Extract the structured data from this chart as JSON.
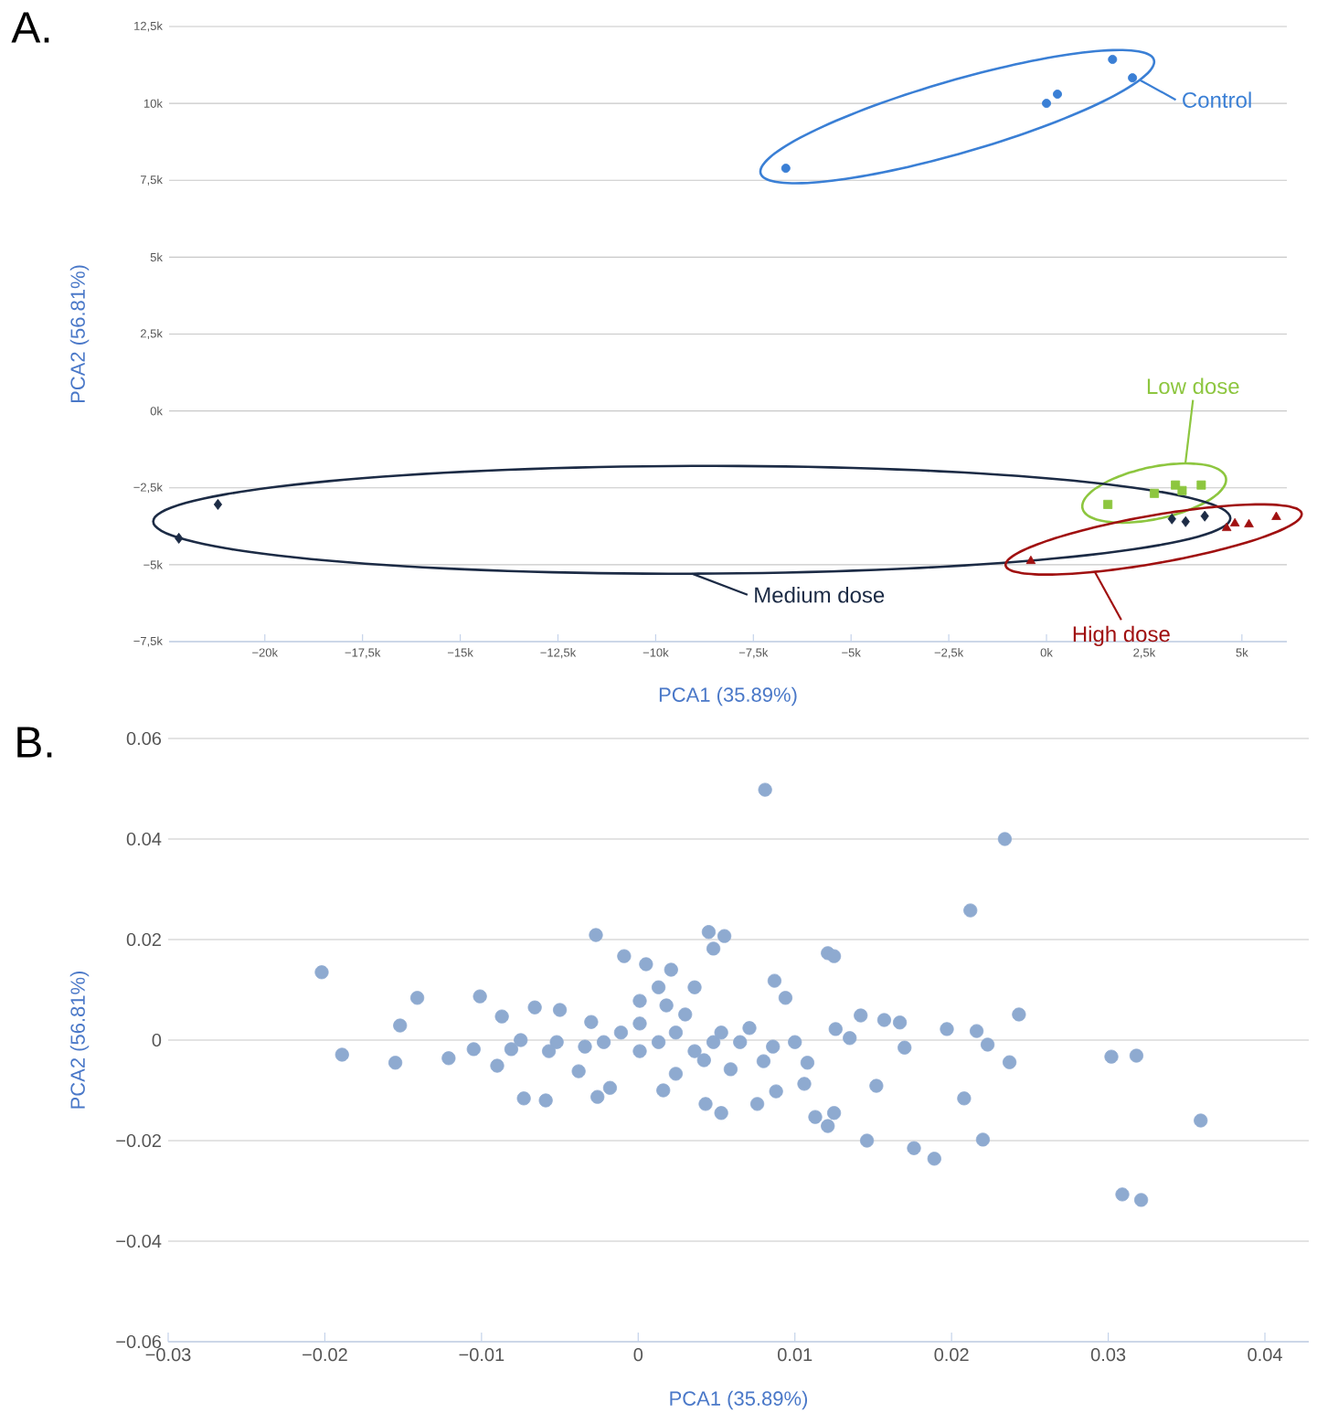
{
  "chart_data": [
    {
      "type": "scatter",
      "xlabel": "PCA1 (35.89%)",
      "ylabel": "PCA2 (56.81%)",
      "annotations": [
        "A."
      ],
      "xlim": [
        -22450,
        6150
      ],
      "ylim": [
        -7500,
        12500
      ],
      "xticks": [
        {
          "value": -20000,
          "label": "−20k"
        },
        {
          "value": -17500,
          "label": "−17,5k"
        },
        {
          "value": -15000,
          "label": "−15k"
        },
        {
          "value": -12500,
          "label": "−12,5k"
        },
        {
          "value": -10000,
          "label": "−10k"
        },
        {
          "value": -7500,
          "label": "−7,5k"
        },
        {
          "value": -5000,
          "label": "−5k"
        },
        {
          "value": -2500,
          "label": "−2,5k"
        },
        {
          "value": 0,
          "label": "0k"
        },
        {
          "value": 2500,
          "label": "2,5k"
        },
        {
          "value": 5000,
          "label": "5k"
        }
      ],
      "yticks": [
        {
          "value": -7500,
          "label": "−7,5k"
        },
        {
          "value": -5000,
          "label": "−5k"
        },
        {
          "value": -2500,
          "label": "−2,5k"
        },
        {
          "value": 0,
          "label": "0k"
        },
        {
          "value": 2500,
          "label": "2,5k"
        },
        {
          "value": 5000,
          "label": "5k"
        },
        {
          "value": 7500,
          "label": "7,5k"
        },
        {
          "value": 10000,
          "label": "10k"
        },
        {
          "value": 12500,
          "label": "12,5k"
        }
      ],
      "grid": "y",
      "legend": "right",
      "series": [
        {
          "name": "Control",
          "color": "#3a7fd5",
          "marker": "circle",
          "x": [
            -6670,
            0,
            280,
            1690,
            2200
          ],
          "values": [
            7890,
            10000,
            10300,
            11430,
            10830
          ]
        },
        {
          "name": "Low dose",
          "color": "#8dc63f",
          "marker": "square",
          "x": [
            1570,
            2760,
            3300,
            3470,
            3960
          ],
          "values": [
            -3040,
            -2680,
            -2410,
            -2590,
            -2410
          ]
        },
        {
          "name": "Medium dose",
          "color": "#1c2b45",
          "marker": "diamond",
          "x": [
            -22200,
            -21200,
            3210,
            3560,
            4050
          ],
          "values": [
            -4140,
            -3040,
            -3510,
            -3600,
            -3420
          ]
        },
        {
          "name": "High dose",
          "color": "#a01010",
          "marker": "triangle",
          "x": [
            -400,
            4610,
            4820,
            5180,
            5880
          ],
          "values": [
            -4880,
            -3810,
            -3660,
            -3690,
            -3450
          ]
        }
      ]
    },
    {
      "type": "scatter",
      "xlabel": "PCA1 (35.89%)",
      "ylabel": "PCA2 (56.81%)",
      "annotations": [
        "B."
      ],
      "xlim": [
        -0.03,
        0.0428
      ],
      "ylim": [
        -0.06,
        0.06
      ],
      "xticks": [
        {
          "value": -0.03,
          "label": "−0.03"
        },
        {
          "value": -0.02,
          "label": "−0.02"
        },
        {
          "value": -0.01,
          "label": "−0.01"
        },
        0,
        0.01,
        0.02,
        0.03,
        0.04
      ],
      "yticks": [
        {
          "value": -0.06,
          "label": "−0.06"
        },
        {
          "value": -0.04,
          "label": "−0.04"
        },
        {
          "value": -0.02,
          "label": "−0.02"
        },
        0,
        0.02,
        0.04,
        0.06
      ],
      "grid": "y",
      "legend": false,
      "marker": "circle",
      "color": "#8eaad0",
      "x": [
        0.0081,
        0.0234,
        0.0212,
        -0.0202,
        -0.0189,
        -0.0152,
        -0.0141,
        -0.0155,
        -0.0121,
        -0.0101,
        -0.0087,
        -0.0073,
        -0.0059,
        -0.0066,
        -0.0027,
        -0.0026,
        -0.0018,
        -0.0009,
        0.0045,
        0.0055,
        0.0016,
        0.0121,
        0.0125,
        0.0087,
        0.0106,
        0.0113,
        0.0121,
        0.0125,
        0.0146,
        0.0152,
        0.0176,
        0.0189,
        0.0142,
        0.0157,
        0.0167,
        0.017,
        0.0197,
        0.0208,
        0.0216,
        0.0223,
        0.022,
        0.0237,
        0.0243,
        0.0302,
        0.0318,
        0.0309,
        0.0321,
        0.0359,
        0.0048,
        0.0005,
        0.0021,
        0.0094,
        0.008,
        0.0088,
        0.0076,
        0.0053,
        0.0043,
        0.0108,
        0.0126,
        0.0135,
        -0.005,
        -0.0052,
        -0.0081,
        -0.0075,
        -0.009,
        -0.0105,
        -0.0038,
        -0.003,
        0.0001,
        0.0013,
        0.0024,
        0.0036,
        0.0048,
        0.0001,
        -0.0011,
        0.003,
        0.0042,
        0.0053,
        0.0065,
        0.0018,
        -0.0022,
        -0.0034,
        0.0071,
        0.0036,
        0.0013,
        0.0059,
        0.0024,
        0.0086,
        0.01,
        -0.0057,
        0.0001
      ],
      "values": [
        0.0498,
        0.04,
        0.0258,
        0.0135,
        -0.0029,
        0.0029,
        0.0084,
        -0.0045,
        -0.0036,
        0.0087,
        0.0047,
        -0.0116,
        -0.012,
        0.0065,
        0.0209,
        -0.0113,
        -0.0095,
        0.0167,
        0.0215,
        0.0207,
        -0.01,
        0.0173,
        0.0167,
        0.0118,
        -0.0087,
        -0.0153,
        -0.0171,
        -0.0145,
        -0.02,
        -0.0091,
        -0.0215,
        -0.0236,
        0.0049,
        0.004,
        0.0035,
        -0.0015,
        0.0022,
        -0.0116,
        0.0018,
        -0.0009,
        -0.0198,
        -0.0044,
        0.0051,
        -0.0033,
        -0.0031,
        -0.0307,
        -0.0318,
        -0.016,
        0.0182,
        0.0151,
        0.014,
        0.0084,
        -0.0042,
        -0.0102,
        -0.0127,
        -0.0145,
        -0.0127,
        -0.0045,
        0.0022,
        0.0004,
        0.006,
        -0.0004,
        -0.0018,
        0,
        -0.0051,
        -0.0018,
        -0.0062,
        0.0036,
        0.0033,
        -0.0004,
        0.0015,
        -0.0022,
        -0.0004,
        -0.0022,
        0.0015,
        0.0051,
        -0.004,
        0.0015,
        -0.0004,
        0.0069,
        -0.0004,
        -0.0013,
        0.0024,
        0.0105,
        0.0105,
        -0.0058,
        -0.0067,
        -0.0013,
        -0.0004,
        -0.0022,
        0.0078
      ]
    }
  ]
}
